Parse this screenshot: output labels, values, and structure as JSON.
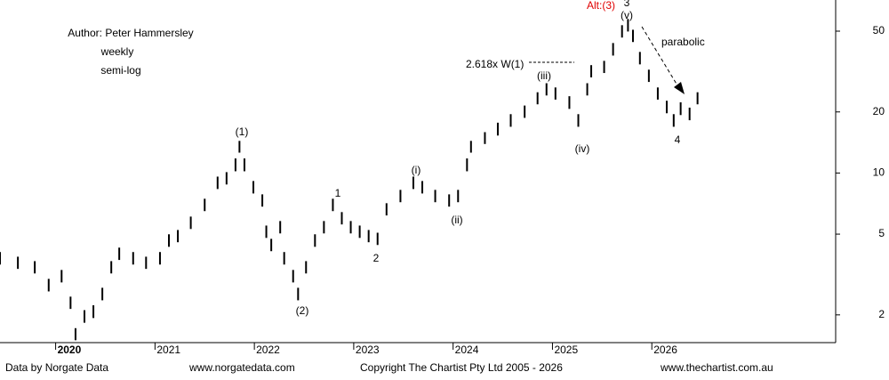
{
  "chart_data": {
    "type": "ohlc",
    "log_scale": true,
    "color": "#000000",
    "x": [
      2019.44,
      2019.62,
      2019.79,
      2019.93,
      2020.06,
      2020.15,
      2020.2,
      2020.29,
      2020.38,
      2020.47,
      2020.56,
      2020.64,
      2020.78,
      2020.91,
      2021.05,
      2021.14,
      2021.23,
      2021.36,
      2021.5,
      2021.63,
      2021.72,
      2021.81,
      2021.85,
      2021.9,
      2021.99,
      2022.08,
      2022.12,
      2022.17,
      2022.26,
      2022.3,
      2022.39,
      2022.44,
      2022.52,
      2022.61,
      2022.7,
      2022.79,
      2022.88,
      2022.97,
      2023.06,
      2023.15,
      2023.24,
      2023.33,
      2023.47,
      2023.6,
      2023.69,
      2023.82,
      2023.96,
      2024.05,
      2024.14,
      2024.18,
      2024.32,
      2024.45,
      2024.58,
      2024.72,
      2024.85,
      2024.94,
      2025.03,
      2025.17,
      2025.26,
      2025.35,
      2025.39,
      2025.52,
      2025.61,
      2025.7,
      2025.76,
      2025.81,
      2025.88,
      2025.97,
      2026.06,
      2026.15,
      2026.22,
      2026.29,
      2026.38,
      2026.46
    ],
    "high": [
      4.08,
      3.87,
      3.68,
      3.01,
      3.33,
      2.46,
      1.72,
      2.11,
      2.23,
      2.72,
      3.68,
      4.29,
      4.08,
      3.87,
      4.08,
      4.99,
      5.24,
      6.1,
      7.47,
      9.6,
      10.1,
      11.8,
      14.4,
      11.8,
      9.13,
      7.85,
      5.51,
      4.74,
      5.8,
      4.08,
      3.33,
      2.72,
      3.68,
      4.99,
      5.8,
      7.47,
      6.42,
      5.8,
      5.51,
      5.24,
      5.08,
      7.1,
      8.26,
      9.6,
      9.13,
      8.26,
      7.85,
      8.26,
      11.8,
      14.4,
      15.9,
      17.7,
      19.5,
      21.5,
      25.0,
      27.7,
      26.4,
      23.9,
      19.5,
      27.7,
      34.0,
      35.7,
      43.7,
      53.5,
      57.4,
      50.8,
      39.5,
      32.3,
      26.4,
      22.7,
      19.5,
      22.3,
      21.0,
      25.0
    ],
    "low": [
      3.54,
      3.37,
      3.2,
      2.61,
      2.89,
      2.14,
      1.5,
      1.83,
      1.93,
      2.36,
      3.2,
      3.73,
      3.54,
      3.37,
      3.54,
      4.33,
      4.56,
      5.3,
      6.49,
      8.34,
      8.78,
      10.2,
      12.6,
      10.2,
      7.93,
      6.83,
      4.79,
      4.12,
      5.04,
      3.54,
      2.89,
      2.36,
      3.2,
      4.33,
      5.04,
      6.49,
      5.58,
      5.04,
      4.79,
      4.56,
      4.42,
      6.18,
      7.18,
      8.34,
      7.93,
      7.18,
      6.83,
      7.18,
      10.2,
      12.6,
      13.9,
      15.3,
      16.9,
      18.7,
      21.8,
      24.1,
      23.0,
      20.7,
      16.9,
      24.1,
      29.6,
      31.1,
      37.9,
      46.5,
      49.8,
      44.2,
      34.3,
      28.1,
      23.0,
      19.7,
      16.9,
      19.3,
      18.2,
      21.8
    ],
    "xlim": [
      2019.44,
      2027.85
    ],
    "xticks": [
      2020,
      2021,
      2022,
      2023,
      2024,
      2025,
      2026
    ],
    "ylim": [
      1.46,
      71.2
    ],
    "yticks": [
      2,
      5,
      10,
      20,
      50
    ],
    "annotations": [
      "Author: Peter Hammersley",
      "weekly",
      "semi-log",
      "(1)",
      "(2)",
      "1",
      "2",
      "(i)",
      "(ii)",
      "(iii)",
      "(iv)",
      "(v)",
      "3",
      "Alt:(3)",
      "4",
      "2.618x W(1)",
      "parabolic"
    ]
  },
  "footer": [
    "Data by Norgate Data",
    "www.norgatedata.com",
    "Copyright The Chartist Pty Ltd 2005 - 2026",
    "www.thechartist.com.au"
  ]
}
